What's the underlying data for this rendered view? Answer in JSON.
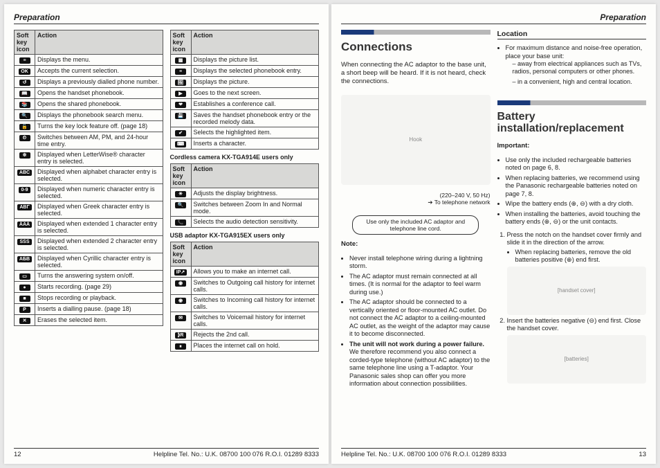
{
  "left": {
    "header": "Preparation",
    "footerPage": "12",
    "helpline": "Helpline Tel. No.: U.K. 08700 100 076  R.O.I. 01289 8333",
    "tableHeaders": {
      "icon": "Soft key icon",
      "action": "Action"
    },
    "table1": [
      {
        "icon": "≡",
        "action": "Displays the menu."
      },
      {
        "icon": "OK",
        "action": "Accepts the current selection."
      },
      {
        "icon": "↺",
        "action": "Displays a previously dialled phone number."
      },
      {
        "icon": "📖",
        "action": "Opens the handset phonebook."
      },
      {
        "icon": "📚",
        "action": "Opens the shared phonebook."
      },
      {
        "icon": "🔍",
        "action": "Displays the phonebook search menu."
      },
      {
        "icon": "🔓",
        "action": "Turns the key lock feature off. (page 18)"
      },
      {
        "icon": "⏲",
        "action": "Switches between AM, PM, and 24-hour time entry."
      },
      {
        "icon": "※",
        "action": "Displayed when LetterWise® character entry is selected."
      },
      {
        "icon": "ABC",
        "action": "Displayed when alphabet character entry is selected."
      },
      {
        "icon": "0-9",
        "action": "Displayed when numeric character entry is selected."
      },
      {
        "icon": "ΑΒΓ",
        "action": "Displayed when Greek character entry is selected."
      },
      {
        "icon": "ÄÄÄ",
        "action": "Displayed when extended 1 character entry is selected."
      },
      {
        "icon": "ŚŚŚ",
        "action": "Displayed when extended 2 character entry is selected."
      },
      {
        "icon": "АБВ",
        "action": "Displayed when Cyrillic character entry is selected."
      },
      {
        "icon": "▭",
        "action": "Turns the answering system on/off."
      },
      {
        "icon": "●",
        "action": "Starts recording. (page 29)"
      },
      {
        "icon": "■",
        "action": "Stops recording or playback."
      },
      {
        "icon": "P",
        "action": "Inserts a dialling pause. (page 18)"
      },
      {
        "icon": "✕",
        "action": "Erases the selected item."
      }
    ],
    "table2": [
      {
        "icon": "▦",
        "action": "Displays the picture list."
      },
      {
        "icon": "≡",
        "action": "Displays the selected phonebook entry."
      },
      {
        "icon": "🖼",
        "action": "Displays the picture."
      },
      {
        "icon": "▶",
        "action": "Goes to the next screen."
      },
      {
        "icon": "❤",
        "action": "Establishes a conference call."
      },
      {
        "icon": "💾",
        "action": "Saves the handset phonebook entry or the recorded melody data."
      },
      {
        "icon": "✔",
        "action": "Selects the highlighted item."
      },
      {
        "icon": "⌨",
        "action": "Inserts a character."
      }
    ],
    "caption2": "Cordless camera KX-TGA914E users only",
    "table3": [
      {
        "icon": "☀",
        "action": "Adjusts the display brightness."
      },
      {
        "icon": "🔍",
        "action": "Switches between Zoom In and Normal mode."
      },
      {
        "icon": "📞",
        "action": "Selects the audio detection sensitivity."
      }
    ],
    "caption3": "USB adaptor KX-TGA915EX users only",
    "table4": [
      {
        "icon": "IP↗",
        "action": "Allows you to make an internet call."
      },
      {
        "icon": "◉",
        "action": "Switches to Outgoing call history for internet calls."
      },
      {
        "icon": "◉",
        "action": "Switches to Incoming call history for internet calls."
      },
      {
        "icon": "✉",
        "action": "Switches to Voicemail history for internet calls."
      },
      {
        "icon": "⟫R",
        "action": "Rejects the 2nd call."
      },
      {
        "icon": "⏸",
        "action": "Places the internet call on hold."
      }
    ]
  },
  "right": {
    "header": "Preparation",
    "footerPage": "13",
    "helpline": "Helpline Tel. No.: U.K. 08700 100 076  R.O.I. 01289 8333",
    "connections": {
      "title": "Connections",
      "intro": "When connecting the AC adaptor to the base unit, a short beep will be heard. If it is not heard, check the connections.",
      "labelHook": "Hook",
      "labelVolt": "(220–240 V, 50 Hz)",
      "labelNet": "To telephone network",
      "callout": "Use only the included AC adaptor and telephone line cord.",
      "noteHead": "Note:",
      "notes": [
        "Never install telephone wiring during a lightning storm.",
        "The AC adaptor must remain connected at all times. (It is normal for the adaptor to feel warm during use.)",
        "The AC adaptor should be connected to a vertically oriented or floor-mounted AC outlet. Do not connect the AC adaptor to a ceiling-mounted AC outlet, as the weight of the adaptor may cause it to become disconnected.",
        "<b>The unit will not work during a power failure.</b> We therefore recommend you also connect a corded-type telephone (without AC adaptor) to the same telephone line using a T-adaptor. Your Panasonic sales shop can offer you more information about connection possibilities."
      ]
    },
    "location": {
      "head": "Location",
      "intro": "For maximum distance and noise-free operation, place your base unit:",
      "items": [
        "away from electrical appliances such as TVs, radios, personal computers or other phones.",
        "in a convenient, high and central location."
      ]
    },
    "battery": {
      "title": "Battery installation/replacement",
      "impHead": "Important:",
      "imps": [
        "Use only the included rechargeable batteries noted on page 6, 8.",
        "When replacing batteries, we recommend using the Panasonic rechargeable batteries noted on page 7, 8.",
        "Wipe the battery ends (⊕, ⊖) with a dry cloth.",
        "When installing the batteries, avoid touching the battery ends (⊕, ⊖) or the unit contacts."
      ],
      "step1": "Press the notch on the handset cover firmly and slide it in the direction of the arrow.",
      "step1sub": "When replacing batteries, remove the old batteries positive (⊕) end first.",
      "step2": "Insert the batteries negative (⊖) end first. Close the handset cover."
    }
  }
}
